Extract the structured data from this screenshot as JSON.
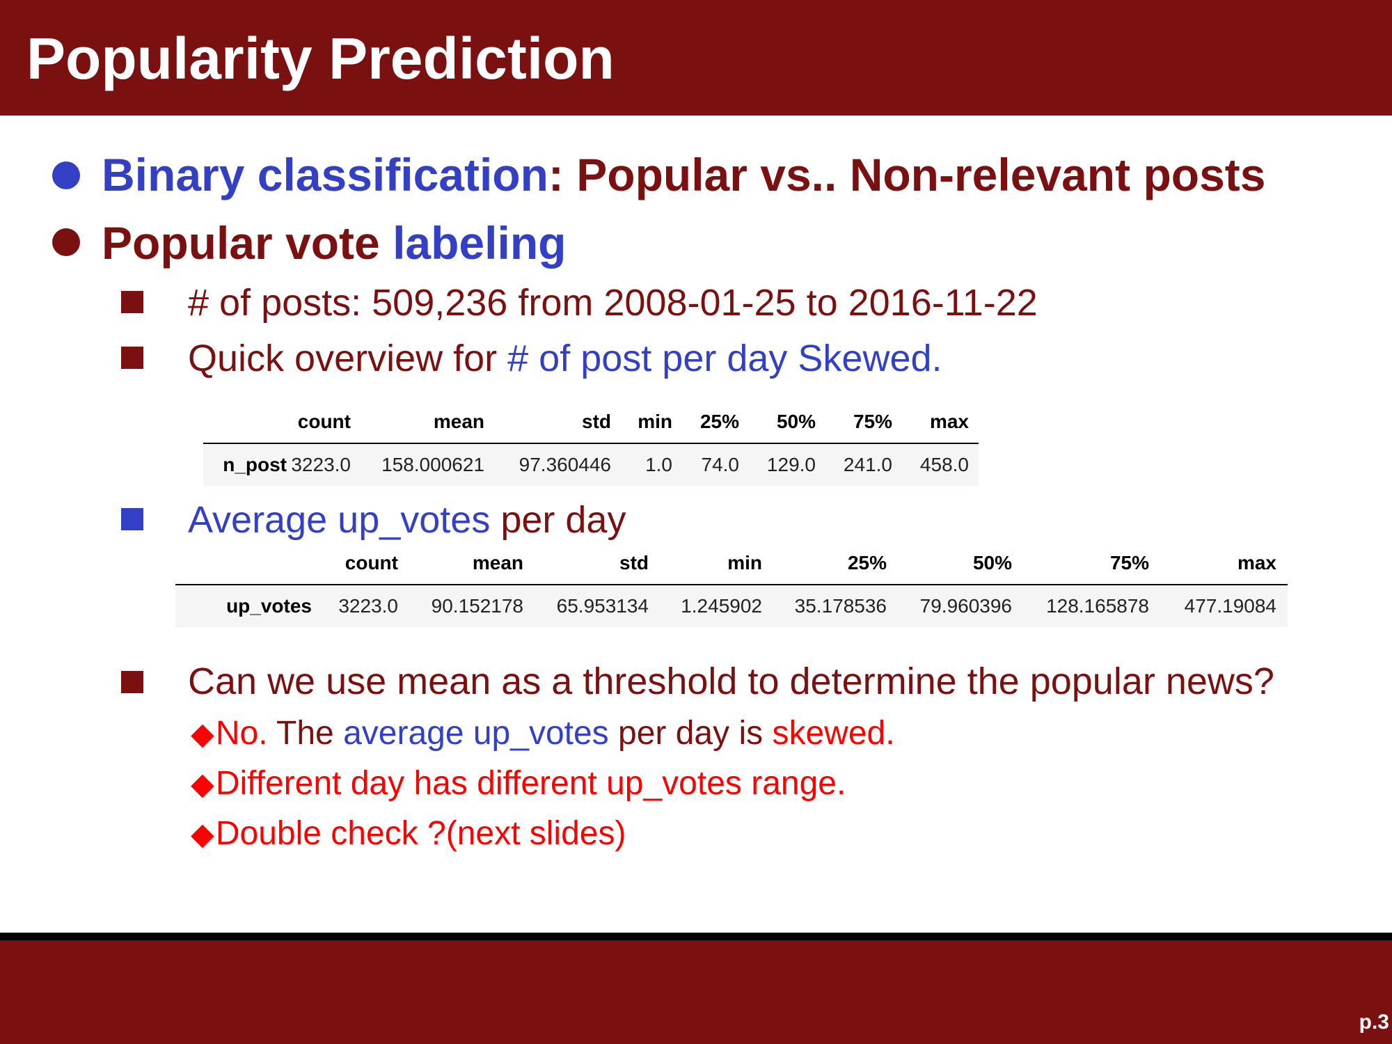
{
  "title": "Popularity Prediction",
  "page_number": "p.3",
  "bullets": {
    "binary": {
      "highlight": "Binary classification",
      "rest": ": Popular vs.. Non-relevant posts"
    },
    "labeling": {
      "lead": "Popular vote ",
      "highlight": "labeling"
    },
    "posts_count": "# of posts: 509,236 from 2008-01-25 to 2016-11-22",
    "overview": {
      "lead": "Quick overview for ",
      "highlight": "# of post per day Skewed."
    },
    "average": {
      "highlight": "Average up_votes",
      "rest": " per day"
    },
    "question": "Can we use mean as a threshold to determine the popular news?",
    "answers": {
      "a1": {
        "diamond": "◆",
        "no": "No.",
        "the": " The ",
        "avg": "average up_votes",
        "per": " per day is ",
        "skewed": "skewed."
      },
      "a2": {
        "diamond": "◆",
        "text": "Different day has different up_votes range."
      },
      "a3": {
        "diamond": "◆",
        "text": "Double check ?(next slides)"
      }
    }
  },
  "table_n_post": {
    "columns": [
      "count",
      "mean",
      "std",
      "min",
      "25%",
      "50%",
      "75%",
      "max"
    ],
    "row_label": "n_post",
    "values": [
      "3223.0",
      "158.000621",
      "97.360446",
      "1.0",
      "74.0",
      "129.0",
      "241.0",
      "458.0"
    ]
  },
  "table_up_votes": {
    "columns": [
      "count",
      "mean",
      "std",
      "min",
      "25%",
      "50%",
      "75%",
      "max"
    ],
    "row_label": "up_votes",
    "values": [
      "3223.0",
      "90.152178",
      "65.953134",
      "1.245902",
      "35.178536",
      "79.960396",
      "128.165878",
      "477.19084"
    ]
  },
  "colors": {
    "header": "#7b1010",
    "text_dark_red": "#7b1010",
    "text_blue": "#3340c6",
    "text_red": "#ff0000"
  }
}
